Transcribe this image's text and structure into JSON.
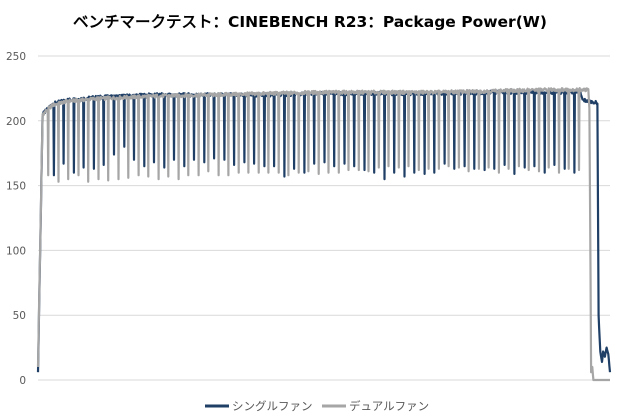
{
  "chart_data": {
    "type": "line",
    "title": "ベンチマークテスト：CINEBENCH R23：Package Power(W)",
    "xlabel": "",
    "ylabel": "",
    "ylim": [
      0,
      250
    ],
    "yticks": [
      0,
      50,
      100,
      150,
      200,
      250
    ],
    "grid": true,
    "legend": "bottom",
    "x_samples": 1000,
    "series": [
      {
        "name": "シングルファン",
        "color": "#1f3f66",
        "segments": [
          [
            0,
            6
          ],
          [
            8,
            205
          ],
          [
            25,
            213
          ],
          [
            50,
            216
          ],
          [
            100,
            218
          ],
          [
            150,
            219
          ],
          [
            200,
            220
          ],
          [
            300,
            220
          ],
          [
            400,
            220
          ],
          [
            500,
            221
          ],
          [
            600,
            221
          ],
          [
            700,
            221
          ],
          [
            800,
            222
          ],
          [
            855,
            222
          ],
          [
            948,
            222
          ],
          [
            952,
            216
          ],
          [
            975,
            214
          ],
          [
            978,
            214
          ],
          [
            980,
            50
          ],
          [
            983,
            22
          ],
          [
            986,
            14
          ],
          [
            988,
            22
          ],
          [
            991,
            18
          ],
          [
            994,
            25
          ],
          [
            997,
            20
          ],
          [
            1000,
            6
          ]
        ],
        "dips": [
          [
            27,
            158
          ],
          [
            44,
            167
          ],
          [
            62,
            160
          ],
          [
            79,
            164
          ],
          [
            97,
            163
          ],
          [
            114,
            166
          ],
          [
            132,
            174
          ],
          [
            150,
            180
          ],
          [
            167,
            170
          ],
          [
            185,
            165
          ],
          [
            202,
            168
          ],
          [
            220,
            164
          ],
          [
            237,
            170
          ],
          [
            255,
            165
          ],
          [
            272,
            170
          ],
          [
            290,
            168
          ],
          [
            307,
            171
          ],
          [
            325,
            170
          ],
          [
            342,
            166
          ],
          [
            360,
            168
          ],
          [
            377,
            167
          ],
          [
            395,
            165
          ],
          [
            412,
            165
          ],
          [
            430,
            157
          ],
          [
            447,
            163
          ],
          [
            465,
            160
          ],
          [
            482,
            167
          ],
          [
            500,
            168
          ],
          [
            517,
            165
          ],
          [
            535,
            167
          ],
          [
            552,
            165
          ],
          [
            570,
            162
          ],
          [
            587,
            160
          ],
          [
            605,
            155
          ],
          [
            622,
            160
          ],
          [
            640,
            157
          ],
          [
            657,
            160
          ],
          [
            675,
            159
          ],
          [
            692,
            160
          ],
          [
            710,
            167
          ],
          [
            727,
            163
          ],
          [
            745,
            165
          ],
          [
            762,
            163
          ],
          [
            780,
            162
          ],
          [
            797,
            163
          ],
          [
            815,
            166
          ],
          [
            832,
            159
          ],
          [
            850,
            164
          ],
          [
            867,
            165
          ],
          [
            885,
            160
          ],
          [
            902,
            166
          ],
          [
            920,
            163
          ],
          [
            937,
            160
          ]
        ]
      },
      {
        "name": "デュアルファン",
        "color": "#a6a6a6",
        "segments": [
          [
            0,
            10
          ],
          [
            8,
            205
          ],
          [
            25,
            212
          ],
          [
            50,
            215
          ],
          [
            100,
            217
          ],
          [
            150,
            218
          ],
          [
            200,
            219
          ],
          [
            300,
            220
          ],
          [
            400,
            221
          ],
          [
            500,
            222
          ],
          [
            600,
            222
          ],
          [
            700,
            222
          ],
          [
            800,
            223
          ],
          [
            900,
            224
          ],
          [
            962,
            224
          ],
          [
            964,
            210
          ],
          [
            967,
            6
          ],
          [
            969,
            10
          ],
          [
            971,
            0
          ],
          [
            1000,
            0
          ]
        ],
        "dips": [
          [
            17,
            158
          ],
          [
            35,
            153
          ],
          [
            52,
            155
          ],
          [
            70,
            158
          ],
          [
            87,
            153
          ],
          [
            105,
            155
          ],
          [
            122,
            154
          ],
          [
            140,
            155
          ],
          [
            157,
            156
          ],
          [
            175,
            158
          ],
          [
            192,
            157
          ],
          [
            210,
            155
          ],
          [
            227,
            157
          ],
          [
            245,
            155
          ],
          [
            262,
            158
          ],
          [
            280,
            158
          ],
          [
            297,
            161
          ],
          [
            315,
            158
          ],
          [
            332,
            158
          ],
          [
            350,
            160
          ],
          [
            367,
            160
          ],
          [
            385,
            160
          ],
          [
            402,
            160
          ],
          [
            420,
            160
          ],
          [
            437,
            158
          ],
          [
            455,
            160
          ],
          [
            472,
            161
          ],
          [
            490,
            159
          ],
          [
            507,
            160
          ],
          [
            525,
            160
          ],
          [
            542,
            162
          ],
          [
            560,
            162
          ],
          [
            577,
            161
          ],
          [
            595,
            164
          ],
          [
            612,
            165
          ],
          [
            630,
            164
          ],
          [
            647,
            165
          ],
          [
            665,
            162
          ],
          [
            682,
            163
          ],
          [
            700,
            163
          ],
          [
            717,
            165
          ],
          [
            735,
            164
          ],
          [
            752,
            161
          ],
          [
            770,
            163
          ],
          [
            787,
            164
          ],
          [
            805,
            160
          ],
          [
            822,
            163
          ],
          [
            840,
            165
          ],
          [
            857,
            162
          ],
          [
            875,
            161
          ],
          [
            892,
            164
          ],
          [
            910,
            160
          ],
          [
            927,
            163
          ],
          [
            945,
            162
          ]
        ]
      }
    ]
  }
}
